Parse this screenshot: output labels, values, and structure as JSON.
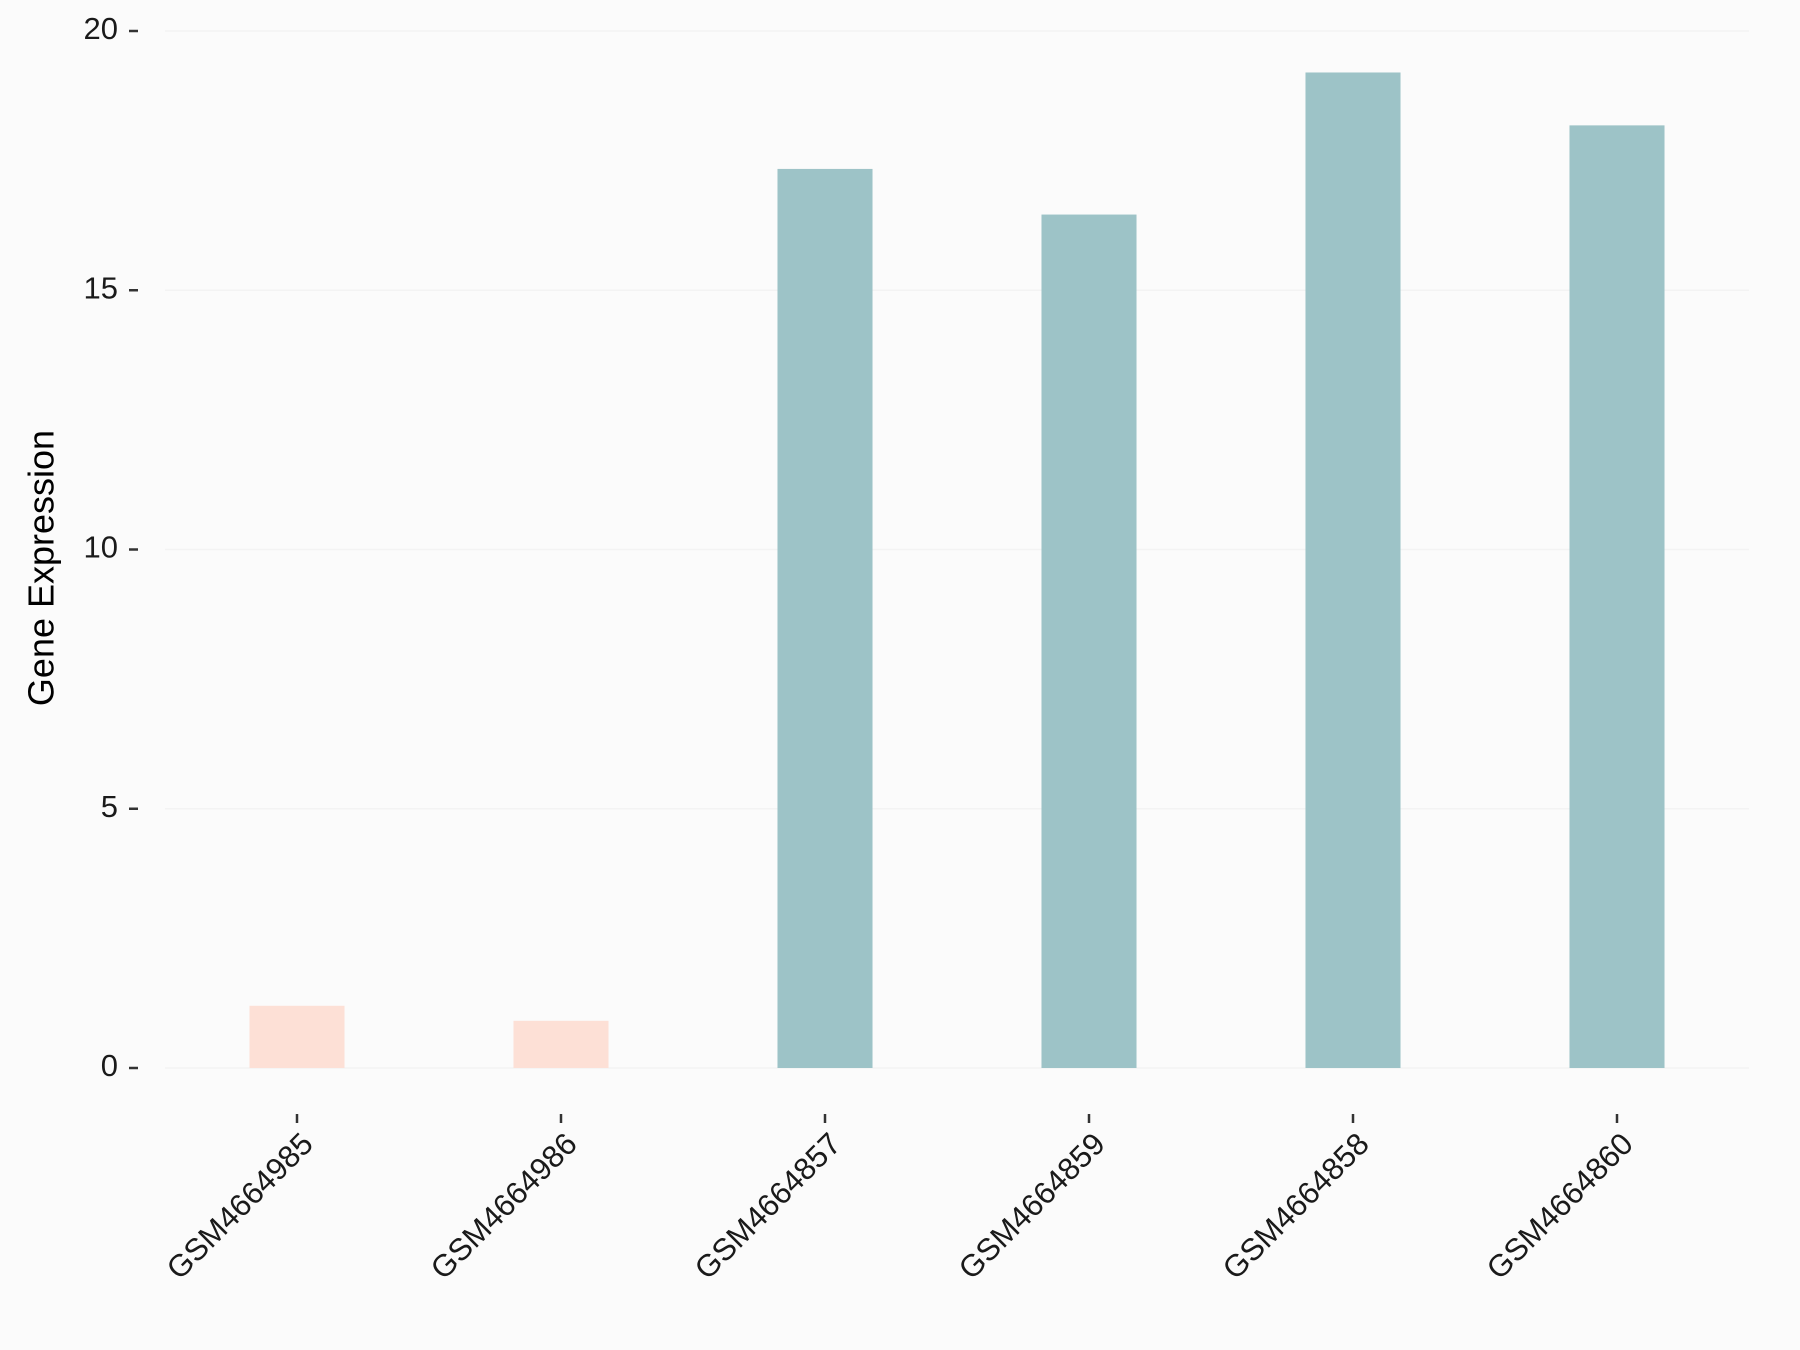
{
  "chart_data": {
    "type": "bar",
    "y_label": "Gene Expression",
    "categories": [
      "GSM4664985",
      "GSM4664986",
      "GSM4664857",
      "GSM4664859",
      "GSM4664858",
      "GSM4664860"
    ],
    "values": [
      1.2,
      0.91,
      17.34,
      16.46,
      19.2,
      18.18
    ],
    "colors": [
      "#fde0d6",
      "#fde0d6",
      "#9dc3c7",
      "#9dc3c7",
      "#9dc3c7",
      "#9dc3c7"
    ],
    "ylim": [
      0,
      20
    ],
    "yticks": [
      0,
      5,
      10,
      15,
      20
    ],
    "grid": true
  }
}
